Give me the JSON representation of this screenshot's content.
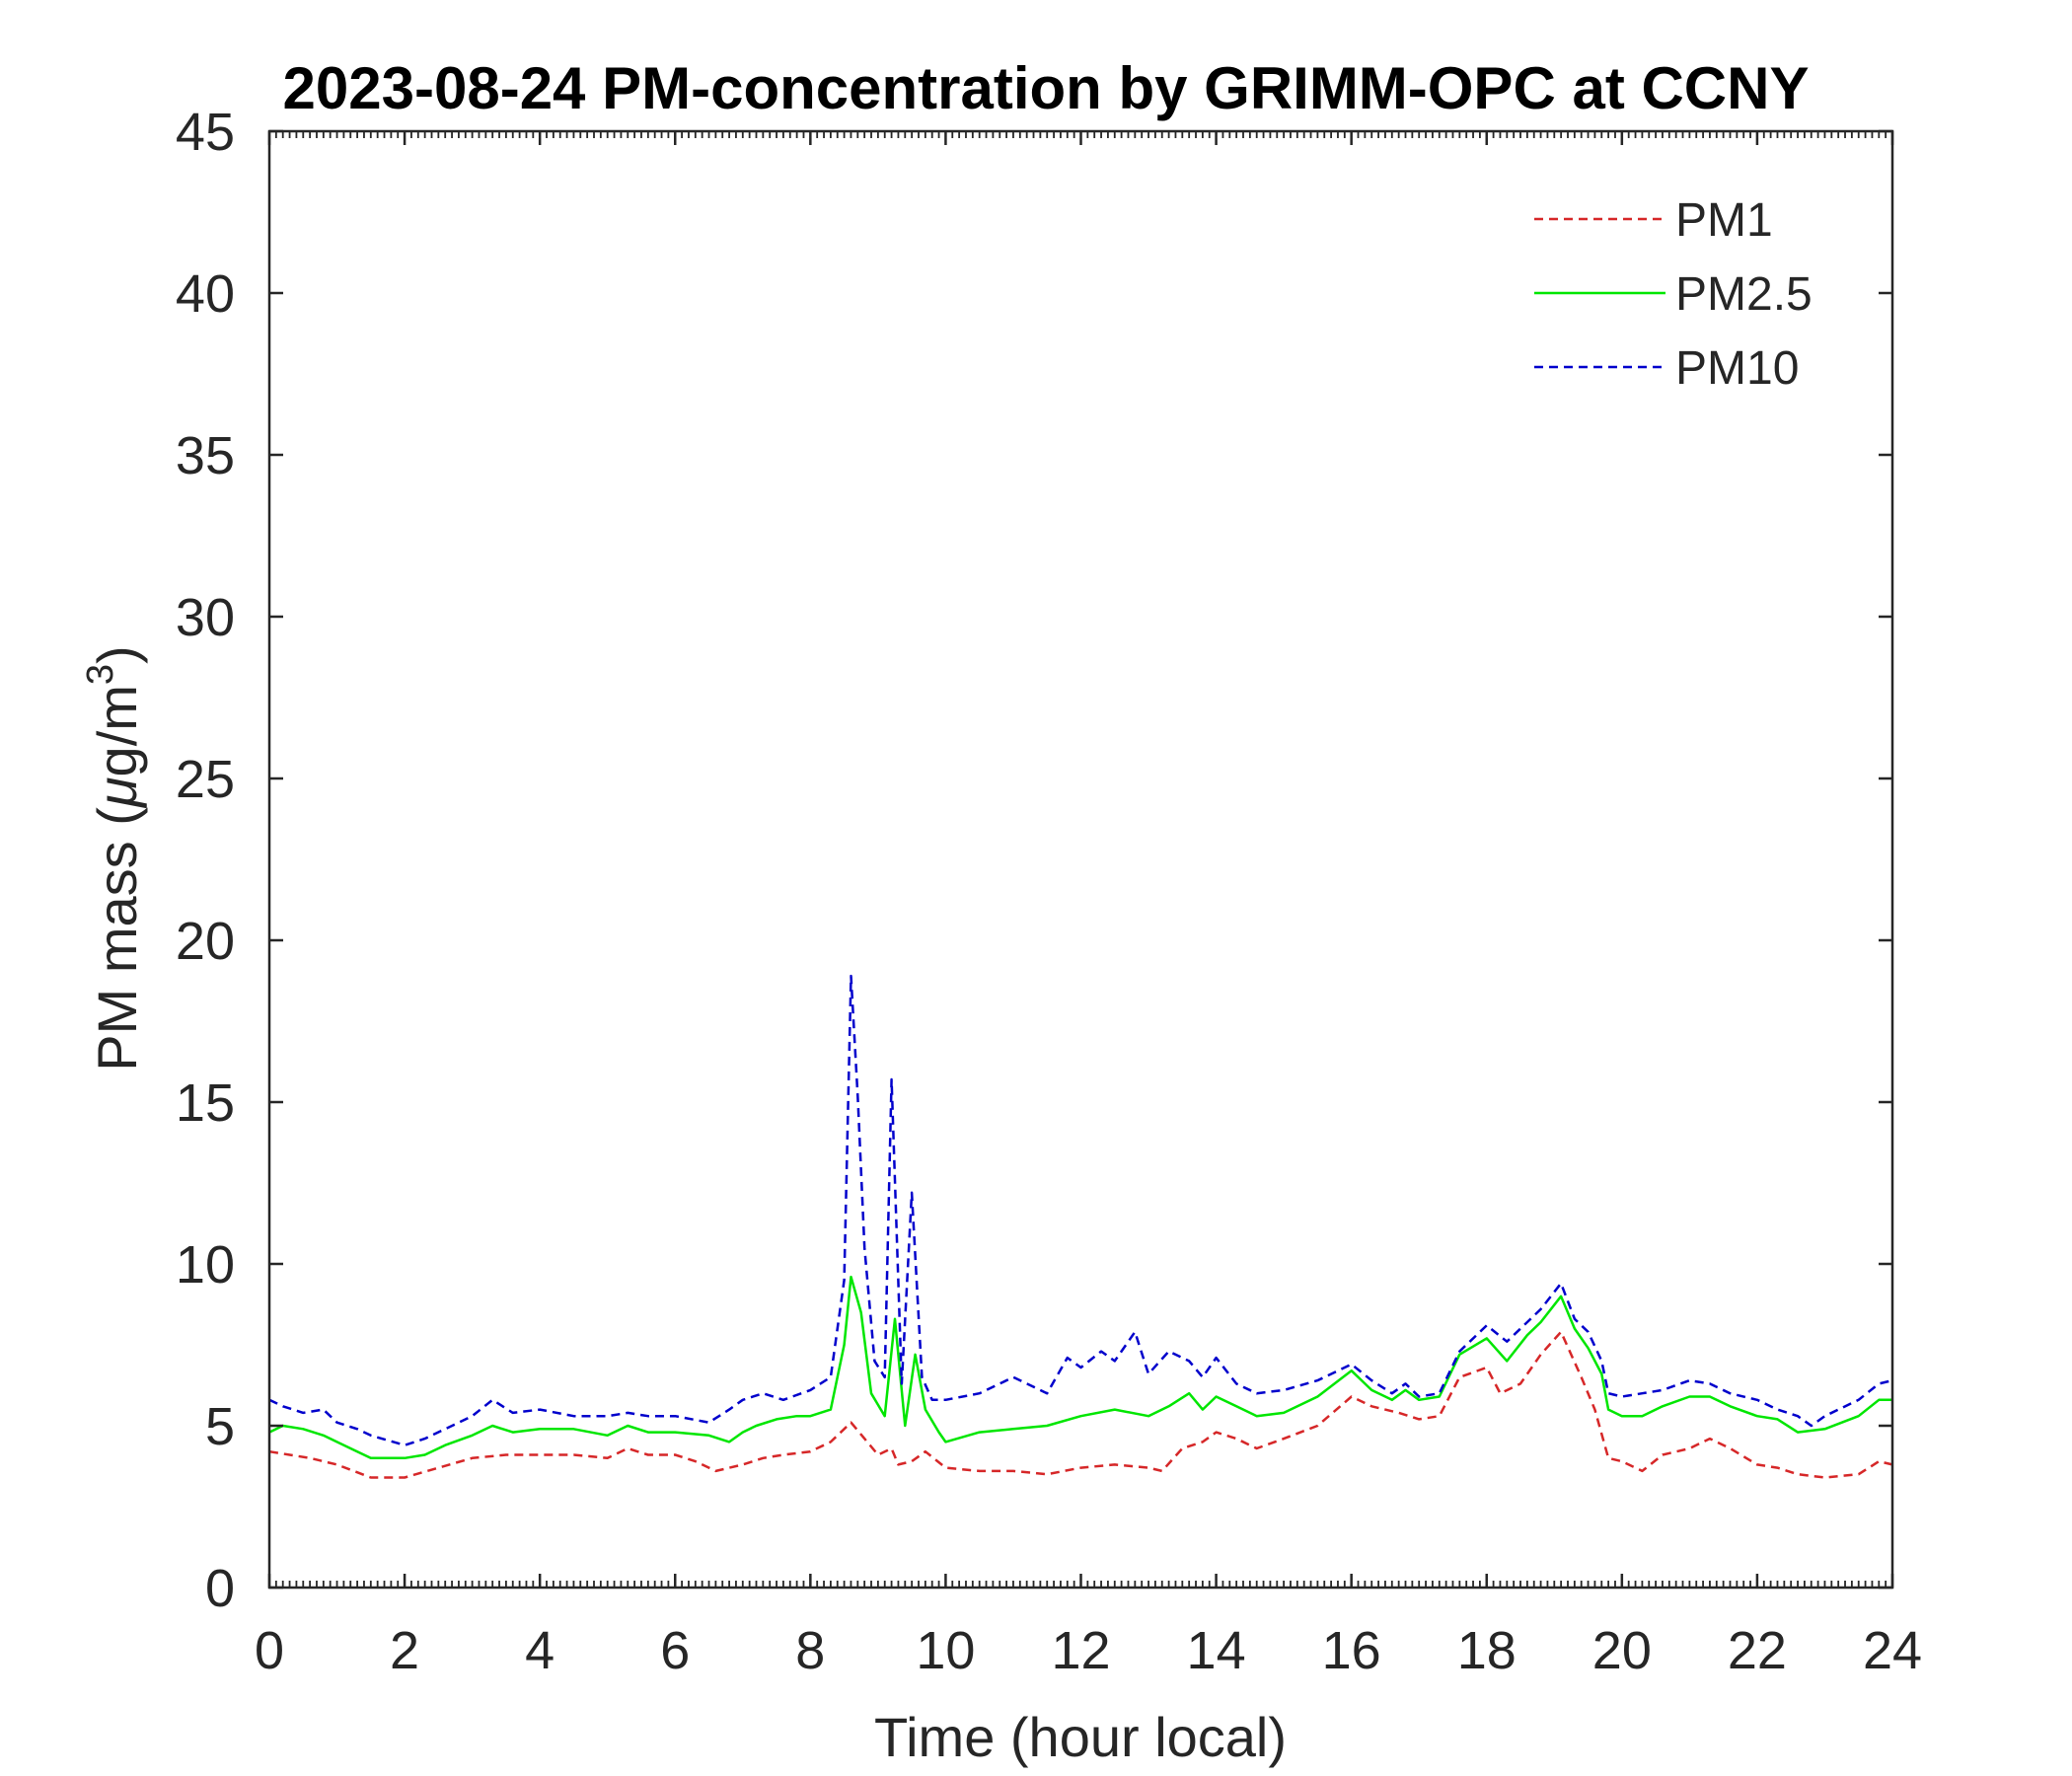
{
  "chart_data": {
    "type": "line",
    "title": "2023-08-24 PM-concentration by GRIMM-OPC at CCNY",
    "xlabel": "Time (hour local)",
    "ylabel_main": "PM mass (",
    "ylabel_mu": "μ",
    "ylabel_unit": "g/m",
    "ylabel_sup": "3",
    "ylabel_close": ")",
    "xlim": [
      0,
      24
    ],
    "ylim": [
      0,
      45
    ],
    "xticks": [
      0,
      2,
      4,
      6,
      8,
      10,
      12,
      14,
      16,
      18,
      20,
      22,
      24
    ],
    "yticks": [
      0,
      5,
      10,
      15,
      20,
      25,
      30,
      35,
      40,
      45
    ],
    "xtick_labels": [
      "0",
      "2",
      "4",
      "6",
      "8",
      "10",
      "12",
      "14",
      "16",
      "18",
      "20",
      "22",
      "24"
    ],
    "ytick_labels": [
      "0",
      "5",
      "10",
      "15",
      "20",
      "25",
      "30",
      "35",
      "40",
      "45"
    ],
    "grid": false,
    "legend_position": "top-right",
    "series": [
      {
        "name": "PM1",
        "color": "#d62728",
        "dash": "dashed",
        "points": [
          [
            0,
            4.2
          ],
          [
            0.3,
            4.1
          ],
          [
            0.6,
            4.0
          ],
          [
            1.0,
            3.8
          ],
          [
            1.5,
            3.4
          ],
          [
            2.0,
            3.4
          ],
          [
            2.5,
            3.7
          ],
          [
            3.0,
            4.0
          ],
          [
            3.5,
            4.1
          ],
          [
            4.0,
            4.1
          ],
          [
            4.5,
            4.1
          ],
          [
            5.0,
            4.0
          ],
          [
            5.3,
            4.3
          ],
          [
            5.6,
            4.1
          ],
          [
            6.0,
            4.1
          ],
          [
            6.3,
            3.9
          ],
          [
            6.6,
            3.6
          ],
          [
            7.0,
            3.8
          ],
          [
            7.3,
            4.0
          ],
          [
            7.6,
            4.1
          ],
          [
            8.0,
            4.2
          ],
          [
            8.3,
            4.5
          ],
          [
            8.6,
            5.1
          ],
          [
            8.8,
            4.6
          ],
          [
            9.0,
            4.1
          ],
          [
            9.2,
            4.3
          ],
          [
            9.3,
            3.8
          ],
          [
            9.5,
            3.9
          ],
          [
            9.7,
            4.2
          ],
          [
            10.0,
            3.7
          ],
          [
            10.5,
            3.6
          ],
          [
            11.0,
            3.6
          ],
          [
            11.5,
            3.5
          ],
          [
            12.0,
            3.7
          ],
          [
            12.5,
            3.8
          ],
          [
            13.0,
            3.7
          ],
          [
            13.2,
            3.6
          ],
          [
            13.5,
            4.3
          ],
          [
            13.8,
            4.5
          ],
          [
            14.0,
            4.8
          ],
          [
            14.3,
            4.6
          ],
          [
            14.6,
            4.3
          ],
          [
            15.0,
            4.6
          ],
          [
            15.5,
            5.0
          ],
          [
            16.0,
            5.9
          ],
          [
            16.3,
            5.6
          ],
          [
            16.7,
            5.4
          ],
          [
            17.0,
            5.2
          ],
          [
            17.3,
            5.3
          ],
          [
            17.6,
            6.5
          ],
          [
            18.0,
            6.8
          ],
          [
            18.2,
            6.0
          ],
          [
            18.5,
            6.3
          ],
          [
            18.8,
            7.2
          ],
          [
            19.1,
            7.9
          ],
          [
            19.4,
            6.5
          ],
          [
            19.6,
            5.5
          ],
          [
            19.8,
            4.0
          ],
          [
            20.0,
            3.9
          ],
          [
            20.3,
            3.6
          ],
          [
            20.6,
            4.1
          ],
          [
            21.0,
            4.3
          ],
          [
            21.3,
            4.6
          ],
          [
            21.6,
            4.3
          ],
          [
            22.0,
            3.8
          ],
          [
            22.3,
            3.7
          ],
          [
            22.6,
            3.5
          ],
          [
            23.0,
            3.4
          ],
          [
            23.5,
            3.5
          ],
          [
            23.8,
            3.9
          ],
          [
            24.0,
            3.8
          ]
        ]
      },
      {
        "name": "PM2.5",
        "color": "#00e600",
        "dash": "solid",
        "points": [
          [
            0,
            4.8
          ],
          [
            0.2,
            5.0
          ],
          [
            0.5,
            4.9
          ],
          [
            0.8,
            4.7
          ],
          [
            1.0,
            4.5
          ],
          [
            1.3,
            4.2
          ],
          [
            1.5,
            4.0
          ],
          [
            2.0,
            4.0
          ],
          [
            2.3,
            4.1
          ],
          [
            2.6,
            4.4
          ],
          [
            3.0,
            4.7
          ],
          [
            3.3,
            5.0
          ],
          [
            3.6,
            4.8
          ],
          [
            4.0,
            4.9
          ],
          [
            4.5,
            4.9
          ],
          [
            5.0,
            4.7
          ],
          [
            5.3,
            5.0
          ],
          [
            5.6,
            4.8
          ],
          [
            6.0,
            4.8
          ],
          [
            6.5,
            4.7
          ],
          [
            6.8,
            4.5
          ],
          [
            7.0,
            4.8
          ],
          [
            7.2,
            5.0
          ],
          [
            7.5,
            5.2
          ],
          [
            7.8,
            5.3
          ],
          [
            8.0,
            5.3
          ],
          [
            8.3,
            5.5
          ],
          [
            8.5,
            7.5
          ],
          [
            8.6,
            9.6
          ],
          [
            8.75,
            8.5
          ],
          [
            8.9,
            6.0
          ],
          [
            9.1,
            5.3
          ],
          [
            9.25,
            8.3
          ],
          [
            9.4,
            5.0
          ],
          [
            9.55,
            7.2
          ],
          [
            9.7,
            5.5
          ],
          [
            9.9,
            4.8
          ],
          [
            10.0,
            4.5
          ],
          [
            10.5,
            4.8
          ],
          [
            11.0,
            4.9
          ],
          [
            11.5,
            5.0
          ],
          [
            12.0,
            5.3
          ],
          [
            12.5,
            5.5
          ],
          [
            13.0,
            5.3
          ],
          [
            13.3,
            5.6
          ],
          [
            13.6,
            6.0
          ],
          [
            13.8,
            5.5
          ],
          [
            14.0,
            5.9
          ],
          [
            14.3,
            5.6
          ],
          [
            14.6,
            5.3
          ],
          [
            15.0,
            5.4
          ],
          [
            15.5,
            5.9
          ],
          [
            16.0,
            6.7
          ],
          [
            16.3,
            6.1
          ],
          [
            16.6,
            5.8
          ],
          [
            16.8,
            6.1
          ],
          [
            17.0,
            5.8
          ],
          [
            17.3,
            5.9
          ],
          [
            17.6,
            7.2
          ],
          [
            18.0,
            7.7
          ],
          [
            18.3,
            7.0
          ],
          [
            18.6,
            7.8
          ],
          [
            18.8,
            8.2
          ],
          [
            19.1,
            9.0
          ],
          [
            19.3,
            8.0
          ],
          [
            19.5,
            7.4
          ],
          [
            19.7,
            6.6
          ],
          [
            19.8,
            5.5
          ],
          [
            20.0,
            5.3
          ],
          [
            20.3,
            5.3
          ],
          [
            20.6,
            5.6
          ],
          [
            21.0,
            5.9
          ],
          [
            21.3,
            5.9
          ],
          [
            21.6,
            5.6
          ],
          [
            22.0,
            5.3
          ],
          [
            22.3,
            5.2
          ],
          [
            22.6,
            4.8
          ],
          [
            23.0,
            4.9
          ],
          [
            23.5,
            5.3
          ],
          [
            23.8,
            5.8
          ],
          [
            24.0,
            5.8
          ]
        ]
      },
      {
        "name": "PM10",
        "color": "#0000cc",
        "dash": "dashed",
        "points": [
          [
            0,
            5.8
          ],
          [
            0.2,
            5.6
          ],
          [
            0.5,
            5.4
          ],
          [
            0.8,
            5.5
          ],
          [
            1.0,
            5.1
          ],
          [
            1.3,
            4.9
          ],
          [
            1.5,
            4.7
          ],
          [
            2.0,
            4.4
          ],
          [
            2.3,
            4.6
          ],
          [
            2.6,
            4.9
          ],
          [
            3.0,
            5.3
          ],
          [
            3.3,
            5.8
          ],
          [
            3.6,
            5.4
          ],
          [
            4.0,
            5.5
          ],
          [
            4.5,
            5.3
          ],
          [
            5.0,
            5.3
          ],
          [
            5.3,
            5.4
          ],
          [
            5.6,
            5.3
          ],
          [
            6.0,
            5.3
          ],
          [
            6.5,
            5.1
          ],
          [
            6.8,
            5.5
          ],
          [
            7.0,
            5.8
          ],
          [
            7.3,
            6.0
          ],
          [
            7.6,
            5.8
          ],
          [
            8.0,
            6.1
          ],
          [
            8.3,
            6.5
          ],
          [
            8.5,
            9.5
          ],
          [
            8.6,
            18.9
          ],
          [
            8.7,
            15.2
          ],
          [
            8.8,
            10.5
          ],
          [
            8.95,
            7.0
          ],
          [
            9.1,
            6.5
          ],
          [
            9.2,
            15.7
          ],
          [
            9.35,
            6.3
          ],
          [
            9.5,
            12.2
          ],
          [
            9.65,
            6.5
          ],
          [
            9.8,
            5.8
          ],
          [
            10.0,
            5.8
          ],
          [
            10.5,
            6.0
          ],
          [
            11.0,
            6.5
          ],
          [
            11.5,
            6.0
          ],
          [
            11.8,
            7.1
          ],
          [
            12.0,
            6.8
          ],
          [
            12.3,
            7.3
          ],
          [
            12.5,
            7.0
          ],
          [
            12.8,
            7.9
          ],
          [
            13.0,
            6.6
          ],
          [
            13.3,
            7.3
          ],
          [
            13.6,
            7.0
          ],
          [
            13.8,
            6.5
          ],
          [
            14.0,
            7.1
          ],
          [
            14.3,
            6.3
          ],
          [
            14.6,
            6.0
          ],
          [
            15.0,
            6.1
          ],
          [
            15.5,
            6.4
          ],
          [
            16.0,
            6.9
          ],
          [
            16.3,
            6.4
          ],
          [
            16.6,
            6.0
          ],
          [
            16.8,
            6.3
          ],
          [
            17.0,
            5.9
          ],
          [
            17.3,
            6.0
          ],
          [
            17.6,
            7.3
          ],
          [
            18.0,
            8.1
          ],
          [
            18.3,
            7.6
          ],
          [
            18.6,
            8.2
          ],
          [
            18.8,
            8.6
          ],
          [
            19.1,
            9.4
          ],
          [
            19.3,
            8.3
          ],
          [
            19.5,
            7.9
          ],
          [
            19.7,
            7.0
          ],
          [
            19.8,
            6.0
          ],
          [
            20.0,
            5.9
          ],
          [
            20.3,
            6.0
          ],
          [
            20.6,
            6.1
          ],
          [
            21.0,
            6.4
          ],
          [
            21.3,
            6.3
          ],
          [
            21.6,
            6.0
          ],
          [
            22.0,
            5.8
          ],
          [
            22.3,
            5.5
          ],
          [
            22.6,
            5.3
          ],
          [
            22.8,
            5.0
          ],
          [
            23.0,
            5.3
          ],
          [
            23.5,
            5.8
          ],
          [
            23.8,
            6.3
          ],
          [
            24.0,
            6.4
          ]
        ]
      }
    ]
  }
}
